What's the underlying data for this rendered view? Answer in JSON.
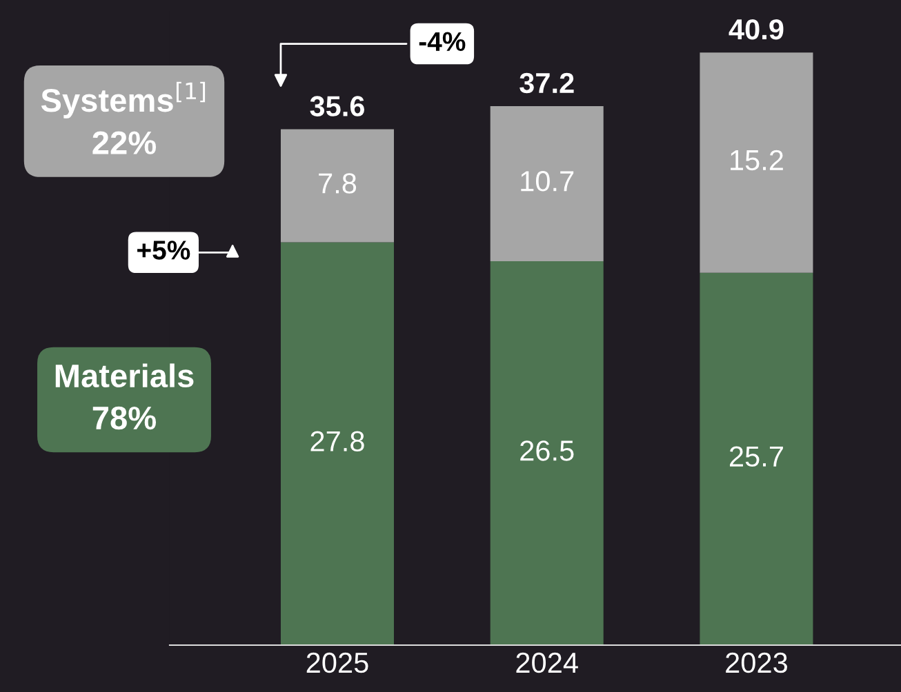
{
  "chart_data": {
    "type": "bar",
    "stacked": true,
    "categories": [
      "2025",
      "2024",
      "2023"
    ],
    "series": [
      {
        "name": "Materials\n78%",
        "color": "#4e7552",
        "values": [
          27.8,
          26.5,
          25.7
        ]
      },
      {
        "name": "Systems$^{[1]}$\n22%",
        "color": "#a6a6a6",
        "values": [
          7.8,
          10.7,
          15.2
        ]
      }
    ],
    "data_labels": true,
    "totals": [
      "35.6",
      "37.2",
      "40.9"
    ],
    "legend": "left",
    "annotations": [
      "-4%",
      "+5%"
    ]
  }
}
